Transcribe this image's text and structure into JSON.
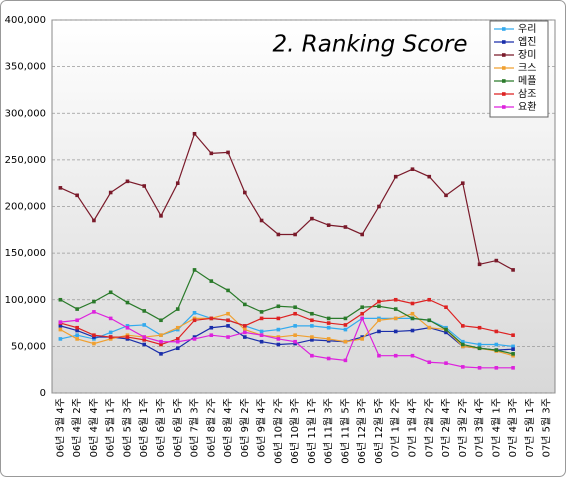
{
  "chart_data": {
    "type": "line",
    "title": "2. Ranking Score",
    "categories": [
      "06년 3월 4주",
      "06년 4월 2주",
      "06년 4월 4주",
      "06년 5월 1주",
      "06년 5월 3주",
      "06년 6월 1주",
      "06년 6월 3주",
      "06년 6월 5주",
      "06년 7월 3주",
      "06년 8월 2주",
      "06년 8월 4주",
      "06년 9월 2주",
      "06년 9월 4주",
      "06년 10월 2주",
      "06년 10월 3주",
      "06년 11월 1주",
      "06년 11월 3주",
      "06년 11월 5주",
      "06년 12월 3주",
      "06년 12월 5주",
      "07년 1월 2주",
      "07년 1월 4주",
      "07년 2월 2주",
      "07년 2월 4주",
      "07년 3월 2주",
      "07년 3월 4주",
      "07년 4월 1주",
      "07년 4월 3주",
      "07년 5월 1주",
      "07년 5월 3주"
    ],
    "series": [
      {
        "name": "우리",
        "color": "#33aaee",
        "values": [
          58000,
          62000,
          58000,
          65000,
          72000,
          73000,
          62000,
          68000,
          86000,
          80000,
          78000,
          72000,
          66000,
          68000,
          72000,
          72000,
          70000,
          68000,
          80000,
          80000,
          80000,
          80000,
          78000,
          70000,
          55000,
          52000,
          52000,
          50000,
          null,
          null
        ]
      },
      {
        "name": "엡진",
        "color": "#1a2eaa",
        "values": [
          72000,
          67000,
          60000,
          60000,
          58000,
          52000,
          42000,
          48000,
          60000,
          70000,
          72000,
          60000,
          55000,
          52000,
          53000,
          57000,
          56000,
          55000,
          60000,
          66000,
          66000,
          67000,
          70000,
          65000,
          50000,
          48000,
          46000,
          47000,
          null,
          null
        ]
      },
      {
        "name": "장미",
        "color": "#7a1a2a",
        "values": [
          220000,
          212000,
          185000,
          215000,
          227000,
          222000,
          190000,
          225000,
          278000,
          257000,
          258000,
          215000,
          185000,
          170000,
          170000,
          187000,
          180000,
          178000,
          170000,
          200000,
          232000,
          240000,
          232000,
          212000,
          225000,
          138000,
          142000,
          132000,
          null,
          null
        ]
      },
      {
        "name": "크스",
        "color": "#f0a030",
        "values": [
          68000,
          58000,
          53000,
          58000,
          62000,
          60000,
          62000,
          70000,
          80000,
          80000,
          85000,
          68000,
          62000,
          60000,
          62000,
          60000,
          58000,
          55000,
          58000,
          78000,
          80000,
          85000,
          70000,
          68000,
          50000,
          48000,
          45000,
          40000,
          null,
          null
        ]
      },
      {
        "name": "메플",
        "color": "#2a7a2a",
        "values": [
          100000,
          90000,
          98000,
          108000,
          97000,
          88000,
          78000,
          90000,
          132000,
          120000,
          110000,
          95000,
          87000,
          93000,
          92000,
          85000,
          80000,
          80000,
          92000,
          93000,
          90000,
          80000,
          78000,
          68000,
          52000,
          48000,
          46000,
          42000,
          null,
          null
        ]
      },
      {
        "name": "삼조",
        "color": "#dd2222",
        "values": [
          75000,
          70000,
          62000,
          60000,
          60000,
          57000,
          52000,
          58000,
          78000,
          80000,
          78000,
          72000,
          80000,
          80000,
          85000,
          78000,
          75000,
          73000,
          85000,
          98000,
          100000,
          96000,
          100000,
          92000,
          72000,
          70000,
          66000,
          62000,
          null,
          null
        ]
      },
      {
        "name": "요환",
        "color": "#dd22dd",
        "values": [
          76000,
          78000,
          87000,
          80000,
          70000,
          60000,
          55000,
          55000,
          58000,
          62000,
          60000,
          65000,
          62000,
          58000,
          55000,
          40000,
          37000,
          35000,
          80000,
          40000,
          40000,
          40000,
          33000,
          32000,
          28000,
          27000,
          27000,
          27000,
          null,
          null
        ]
      }
    ],
    "ylim": [
      0,
      400000
    ],
    "yticks": [
      0,
      {
        "value": 50000,
        "label": "50,000"
      },
      {
        "value": 100000,
        "label": "100,000"
      },
      {
        "value": 150000,
        "label": "150,000"
      },
      {
        "value": 200000,
        "label": "200,000"
      },
      {
        "value": 250000,
        "label": "250,000"
      },
      {
        "value": 300000,
        "label": "300,000"
      },
      {
        "value": 350000,
        "label": "350,000"
      },
      {
        "value": 400000,
        "label": "400,000"
      }
    ],
    "grid": true,
    "legend": "top-right"
  }
}
